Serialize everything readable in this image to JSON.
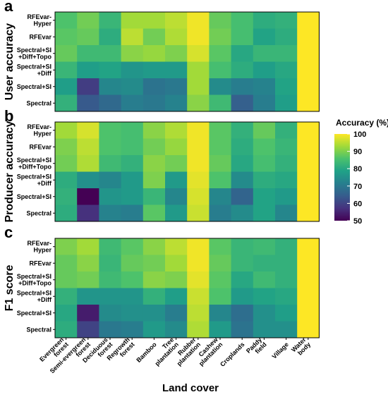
{
  "chart_data": {
    "type": "heatmap",
    "xlabel": "Land cover",
    "columns": [
      "Evergreen\nforest",
      "Semi-evergreen\nforest",
      "Deciduous\nforest",
      "Regrowth\nforest",
      "Bamboo",
      "Tree\nplantation",
      "Rubber\nplantation",
      "Cashew\nplantation",
      "Croplands",
      "Paddy\nfield",
      "Village",
      "Water\nbody"
    ],
    "rows": [
      "RFEvar-\nHyper",
      "RFEvar",
      "Spectral+SI\n+Diff+Topo",
      "Spectral+SI\n+Diff",
      "Spectral+SI",
      "Spectral"
    ],
    "colorbar": {
      "title": "Accuracy (%)",
      "ticks": [
        100,
        90,
        80,
        70,
        60,
        50
      ],
      "range": [
        50,
        100
      ],
      "colors": [
        "#440154",
        "#46327e",
        "#365c8d",
        "#277f8e",
        "#1fa187",
        "#4ac16d",
        "#a0da39",
        "#fde725"
      ]
    },
    "panels": [
      {
        "label": "a",
        "ylabel": "User accuracy",
        "values": [
          [
            86,
            89,
            83,
            93,
            93,
            95,
            99,
            88,
            85,
            81,
            82,
            100
          ],
          [
            87,
            88,
            81,
            95,
            89,
            94,
            99,
            89,
            85,
            79,
            81,
            100
          ],
          [
            88,
            84,
            84,
            91,
            92,
            90,
            97,
            87,
            80,
            83,
            83,
            100
          ],
          [
            83,
            78,
            79,
            76,
            77,
            77,
            93,
            85,
            81,
            78,
            80,
            100
          ],
          [
            78,
            59,
            73,
            74,
            69,
            70,
            93,
            74,
            71,
            72,
            79,
            100
          ],
          [
            82,
            64,
            67,
            71,
            70,
            72,
            91,
            84,
            65,
            71,
            78,
            100
          ]
        ]
      },
      {
        "label": "b",
        "ylabel": "Producer accuracy",
        "values": [
          [
            93,
            97,
            86,
            85,
            91,
            94,
            99,
            87,
            82,
            88,
            82,
            100
          ],
          [
            90,
            95,
            86,
            85,
            89,
            92,
            99,
            87,
            81,
            86,
            83,
            100
          ],
          [
            89,
            94,
            84,
            82,
            91,
            89,
            99,
            88,
            80,
            85,
            82,
            100
          ],
          [
            81,
            75,
            73,
            77,
            90,
            77,
            98,
            86,
            74,
            81,
            80,
            100
          ],
          [
            82,
            50,
            76,
            77,
            83,
            73,
            97,
            73,
            66,
            79,
            77,
            100
          ],
          [
            81,
            57,
            72,
            71,
            87,
            77,
            96,
            71,
            74,
            79,
            73,
            100
          ]
        ]
      },
      {
        "label": "c",
        "ylabel": "F1 score",
        "values": [
          [
            90,
            93,
            84,
            87,
            91,
            95,
            99,
            87,
            83,
            84,
            82,
            100
          ],
          [
            88,
            91,
            83,
            88,
            89,
            93,
            99,
            88,
            83,
            82,
            82,
            100
          ],
          [
            88,
            89,
            84,
            86,
            91,
            90,
            98,
            87,
            80,
            84,
            82,
            100
          ],
          [
            82,
            76,
            76,
            76,
            82,
            78,
            96,
            86,
            77,
            79,
            80,
            100
          ],
          [
            80,
            54,
            74,
            75,
            75,
            71,
            95,
            73,
            68,
            75,
            78,
            100
          ],
          [
            81,
            60,
            70,
            71,
            77,
            74,
            94,
            77,
            69,
            75,
            75,
            100
          ]
        ]
      }
    ]
  }
}
